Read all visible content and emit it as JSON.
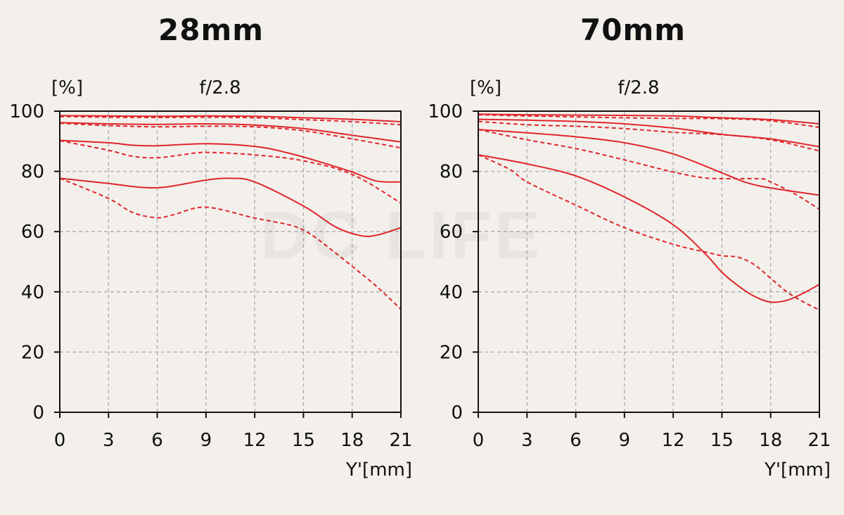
{
  "watermark": "DC LIFE",
  "colors": {
    "curve": "#e0262b",
    "grid": "#aaaaaa",
    "axis": "#111111",
    "background": "#f3f0ec"
  },
  "chart_data": [
    {
      "type": "line",
      "title": "28mm",
      "subtitle": "f/2.8",
      "ylabel": "[%]",
      "xlabel": "Y'[mm]",
      "xlim": [
        0,
        21
      ],
      "ylim": [
        0,
        100
      ],
      "xticks": [
        "0",
        "3",
        "6",
        "9",
        "12",
        "15",
        "18",
        "21"
      ],
      "yticks": [
        "0",
        "20",
        "40",
        "60",
        "80",
        "100"
      ],
      "grid": true,
      "series": [
        {
          "style": "solid",
          "x": [
            0,
            3,
            6,
            9,
            12,
            15,
            18,
            21
          ],
          "y": [
            98.5,
            98.4,
            98.3,
            98.4,
            98.3,
            97.8,
            97.3,
            96.5
          ]
        },
        {
          "style": "dashed",
          "x": [
            0,
            3,
            6,
            9,
            12,
            15,
            18,
            21
          ],
          "y": [
            98.2,
            98.0,
            97.9,
            98.0,
            97.8,
            97.2,
            96.5,
            95.5
          ]
        },
        {
          "style": "solid",
          "x": [
            0,
            3,
            6,
            9,
            12,
            15,
            18,
            21
          ],
          "y": [
            96.2,
            95.8,
            95.6,
            95.8,
            95.4,
            94.2,
            92.0,
            89.8
          ]
        },
        {
          "style": "dashed",
          "x": [
            0,
            3,
            6,
            9,
            12,
            15,
            18,
            21
          ],
          "y": [
            96.0,
            95.2,
            94.8,
            95.0,
            94.8,
            93.5,
            90.8,
            87.8
          ]
        },
        {
          "style": "solid",
          "x": [
            0,
            3,
            4.5,
            6,
            9,
            12,
            14,
            16,
            18,
            19.5,
            21
          ],
          "y": [
            90.3,
            89.5,
            88.7,
            88.5,
            89.2,
            88.3,
            86.2,
            83.2,
            79.8,
            76.8,
            76.5
          ]
        },
        {
          "style": "dashed",
          "x": [
            0,
            3,
            4.5,
            6,
            7.5,
            9,
            12,
            15,
            18,
            21
          ],
          "y": [
            90.2,
            87.0,
            85.0,
            84.5,
            85.5,
            86.3,
            85.5,
            83.5,
            79.0,
            69.5
          ]
        },
        {
          "style": "solid",
          "x": [
            0,
            3,
            5,
            6.5,
            9,
            10.5,
            12,
            15,
            17,
            18.5,
            19.5,
            21
          ],
          "y": [
            77.7,
            76.0,
            74.7,
            74.8,
            77.1,
            77.7,
            76.5,
            68.5,
            61.5,
            58.7,
            58.8,
            61.3
          ]
        },
        {
          "style": "dashed",
          "x": [
            0,
            3,
            4.5,
            6,
            7,
            9,
            12,
            14,
            15,
            16,
            18,
            19.5,
            21
          ],
          "y": [
            77.7,
            71.0,
            66.3,
            64.6,
            65.6,
            68.1,
            64.5,
            62.4,
            60.5,
            57.0,
            48.5,
            41.8,
            34.2
          ]
        }
      ]
    },
    {
      "type": "line",
      "title": "70mm",
      "subtitle": "f/2.8",
      "ylabel": "[%]",
      "xlabel": "Y'[mm]",
      "xlim": [
        0,
        21
      ],
      "ylim": [
        0,
        100
      ],
      "xticks": [
        "0",
        "3",
        "6",
        "9",
        "12",
        "15",
        "18",
        "21"
      ],
      "yticks": [
        "0",
        "20",
        "40",
        "60",
        "80",
        "100"
      ],
      "grid": true,
      "series": [
        {
          "style": "solid",
          "x": [
            0,
            3,
            6,
            9,
            12,
            15,
            18,
            21
          ],
          "y": [
            99.0,
            98.8,
            98.7,
            98.6,
            98.4,
            97.8,
            97.2,
            95.8
          ]
        },
        {
          "style": "dashed",
          "x": [
            0,
            3,
            6,
            9,
            12,
            15,
            18,
            21
          ],
          "y": [
            98.8,
            98.4,
            98.1,
            97.8,
            97.6,
            97.5,
            96.8,
            94.6
          ]
        },
        {
          "style": "solid",
          "x": [
            0,
            3,
            6,
            9,
            12,
            15,
            18,
            21
          ],
          "y": [
            97.3,
            97.0,
            96.6,
            95.8,
            94.4,
            92.3,
            90.8,
            88.2
          ]
        },
        {
          "style": "dashed",
          "x": [
            0,
            3,
            6,
            9,
            12,
            15,
            18,
            21
          ],
          "y": [
            96.6,
            95.5,
            95.0,
            94.2,
            93.0,
            92.2,
            90.5,
            86.8
          ]
        },
        {
          "style": "solid",
          "x": [
            0,
            3,
            6,
            9,
            12,
            15,
            16.5,
            18,
            21
          ],
          "y": [
            93.9,
            92.8,
            91.5,
            89.5,
            85.8,
            79.5,
            76.3,
            74.5,
            72.1
          ]
        },
        {
          "style": "dashed",
          "x": [
            0,
            3,
            6,
            9,
            12,
            14,
            16,
            17.5,
            18,
            19.5,
            21
          ],
          "y": [
            93.9,
            90.5,
            87.6,
            83.8,
            79.8,
            77.8,
            77.6,
            77.5,
            76.5,
            72.5,
            67.4
          ]
        },
        {
          "style": "solid",
          "x": [
            0,
            3,
            6,
            9,
            12,
            14,
            15,
            16,
            17,
            18,
            19,
            20,
            21
          ],
          "y": [
            85.5,
            82.5,
            78.5,
            71.5,
            62.3,
            52.5,
            46.5,
            42.0,
            38.5,
            36.6,
            37.2,
            39.5,
            42.5
          ]
        },
        {
          "style": "dashed",
          "x": [
            0,
            2,
            3,
            6,
            9,
            12,
            14,
            15,
            16,
            17,
            18,
            19,
            20,
            21
          ],
          "y": [
            85.5,
            80.5,
            76.5,
            68.8,
            61.3,
            55.8,
            53.2,
            52.0,
            51.5,
            49.0,
            44.5,
            40.0,
            36.7,
            34.0
          ]
        }
      ]
    }
  ]
}
